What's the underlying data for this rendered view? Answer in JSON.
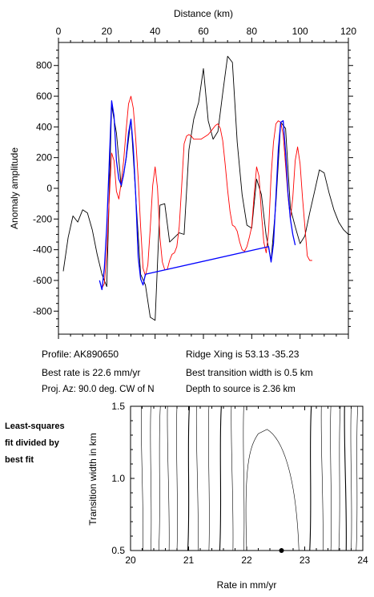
{
  "chart_data": [
    {
      "type": "line",
      "title": "",
      "xlabel": "Distance (km)",
      "ylabel": "Anomaly amplitude",
      "xlim": [
        0,
        120
      ],
      "ylim": [
        -950,
        950
      ],
      "x_ticks": [
        0,
        20,
        40,
        60,
        80,
        100,
        120
      ],
      "y_ticks": [
        -800,
        -600,
        -400,
        -200,
        0,
        200,
        400,
        600,
        800
      ],
      "x_axis_position": "top",
      "grid": false,
      "legend": "none",
      "colors": {
        "observed": "#000000",
        "model": "#ff0000",
        "fit": "#0000ff"
      },
      "series": [
        {
          "x": [
            2,
            4,
            6,
            8,
            10,
            12,
            14,
            16,
            18,
            20,
            22,
            24,
            26,
            28,
            30,
            32,
            34,
            36,
            38,
            40,
            42,
            44,
            46,
            48,
            50,
            52,
            54,
            56,
            58,
            60,
            62,
            64,
            66,
            68,
            70,
            72,
            74,
            76,
            78,
            80,
            82,
            84,
            86,
            88,
            90,
            92,
            94,
            96,
            98,
            100,
            102,
            104,
            106,
            108,
            110,
            112,
            114,
            116,
            118,
            120
          ],
          "values": [
            -540,
            -320,
            -180,
            -220,
            -140,
            -160,
            -270,
            -430,
            -560,
            -640,
            540,
            360,
            10,
            190,
            450,
            -50,
            -560,
            -630,
            -840,
            -860,
            -110,
            -100,
            -350,
            -320,
            -290,
            -300,
            250,
            450,
            560,
            780,
            440,
            320,
            370,
            620,
            860,
            820,
            300,
            -40,
            -240,
            -260,
            60,
            -40,
            -310,
            -470,
            -100,
            430,
            390,
            -130,
            -250,
            -360,
            -310,
            -160,
            -20,
            120,
            100,
            -30,
            -140,
            -220,
            -270,
            -300
          ]
        },
        {
          "x": [
            18,
            19,
            20,
            21,
            22,
            23,
            24,
            25,
            26,
            27,
            28,
            29,
            30,
            31,
            32,
            33,
            34,
            35,
            36,
            37,
            38,
            39,
            40,
            41,
            42,
            43,
            44,
            45,
            46,
            47,
            48,
            49,
            50,
            51,
            52,
            53,
            54,
            55,
            56,
            57,
            58,
            59,
            60,
            61,
            62,
            63,
            64,
            65,
            66,
            67,
            68,
            69,
            70,
            71,
            72,
            73,
            74,
            75,
            76,
            77,
            78,
            79,
            80,
            81,
            82,
            83,
            84,
            85,
            86,
            87,
            88,
            89,
            90,
            91,
            92,
            93,
            94,
            95,
            96,
            97,
            98,
            99,
            100,
            101,
            102,
            103,
            104,
            105
          ],
          "values": [
            -650,
            -620,
            -420,
            -80,
            230,
            180,
            -20,
            -70,
            40,
            180,
            380,
            550,
            600,
            520,
            320,
            60,
            -250,
            -520,
            -570,
            -500,
            -260,
            20,
            140,
            0,
            -320,
            -480,
            -530,
            -530,
            -470,
            -430,
            -420,
            -380,
            -250,
            10,
            290,
            340,
            350,
            340,
            320,
            320,
            320,
            320,
            330,
            340,
            350,
            370,
            390,
            410,
            420,
            390,
            310,
            160,
            -10,
            -150,
            -240,
            -250,
            -280,
            -350,
            -400,
            -410,
            -380,
            -320,
            -250,
            -40,
            140,
            80,
            -160,
            -350,
            -420,
            -280,
            80,
            300,
            420,
            440,
            430,
            350,
            150,
            -50,
            -200,
            -60,
            180,
            270,
            160,
            -60,
            -250,
            -440,
            -470,
            -470
          ]
        },
        {
          "x": [
            17,
            18,
            19,
            20,
            21,
            22,
            23,
            24,
            25,
            26,
            27,
            28,
            29,
            30,
            31,
            32,
            33,
            34,
            35,
            36,
            87,
            88,
            89,
            90,
            91,
            92,
            93,
            94,
            95,
            96,
            97,
            98
          ],
          "values": [
            -600,
            -660,
            -520,
            -250,
            150,
            570,
            470,
            180,
            60,
            20,
            90,
            200,
            360,
            450,
            260,
            -50,
            -450,
            -590,
            -630,
            -560,
            -380,
            -480,
            -360,
            -60,
            250,
            430,
            440,
            230,
            -30,
            -200,
            -300,
            -370
          ]
        }
      ]
    },
    {
      "type": "contour",
      "title": "",
      "xlabel": "Rate in mm/yr",
      "ylabel": "Transition width in km",
      "xlim": [
        20,
        24
      ],
      "ylim": [
        0.5,
        1.5
      ],
      "x_ticks": [
        20,
        21,
        22,
        23,
        24
      ],
      "x_tick_labels": [
        "20",
        "21",
        "22",
        "23",
        "24"
      ],
      "y_ticks": [
        0.5,
        1.0,
        1.5
      ],
      "y_tick_labels": [
        "0.5",
        "1.0",
        "1.5"
      ],
      "contour_x_positions": [
        20.2,
        20.35,
        20.5,
        20.65,
        20.8,
        21.0,
        21.15,
        21.35,
        21.55,
        21.75,
        21.95,
        23.1,
        23.3,
        23.45,
        23.6,
        23.7,
        23.8,
        23.9
      ],
      "best_fit": {
        "rate": 22.6,
        "width": 0.5
      }
    }
  ],
  "info": {
    "profile": "Profile: AK890650",
    "best_rate": "Best rate is 22.6 mm/yr",
    "proj_az": "Proj. Az: 90.0 deg. CW of N",
    "ridge_xing": "Ridge Xing is 53.13 -35.23",
    "transition_width": "Best transition width is 0.5 km",
    "depth_to_source": "Depth to source is   2.36 km"
  },
  "side_note": [
    "Least-squares",
    "fit divided by",
    "best fit"
  ]
}
